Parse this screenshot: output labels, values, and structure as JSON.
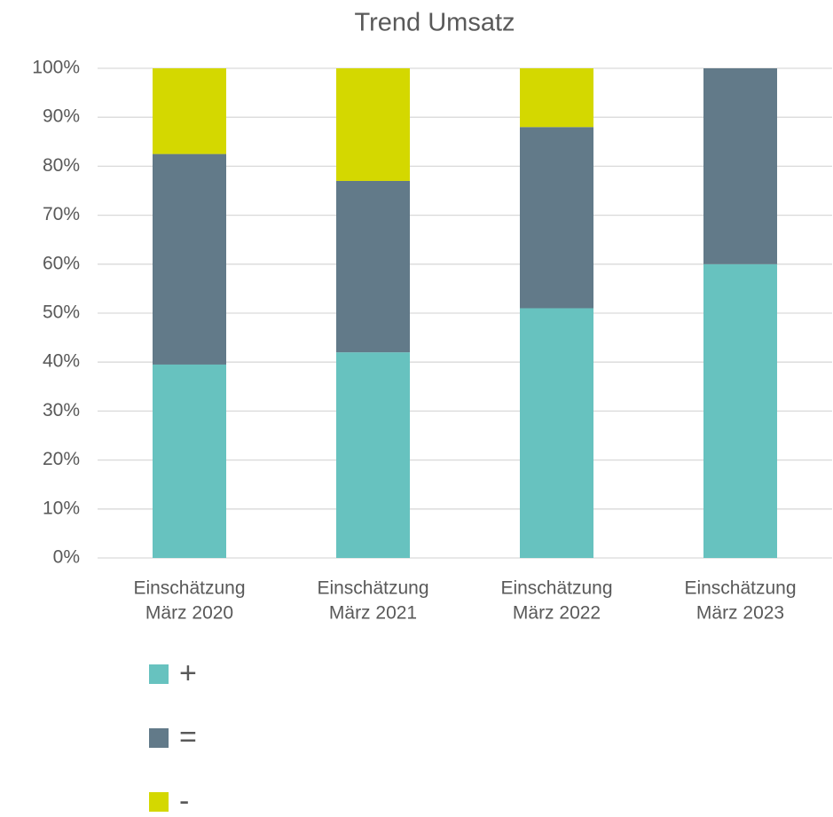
{
  "chart_data": {
    "type": "stacked_bar",
    "title": "Trend Umsatz",
    "categories": [
      [
        "Einschätzung",
        "März 2020"
      ],
      [
        "Einschätzung",
        "März 2021"
      ],
      [
        "Einschätzung",
        "März 2022"
      ],
      [
        "Einschätzung",
        "März 2023"
      ]
    ],
    "series": [
      {
        "name": "+",
        "color": "#67c2bf",
        "values": [
          39.5,
          42,
          51,
          60
        ]
      },
      {
        "name": "=",
        "color": "#627a89",
        "values": [
          43,
          35,
          37,
          40
        ]
      },
      {
        "name": "-",
        "color": "#d4d800",
        "values": [
          17.5,
          23,
          12,
          0
        ]
      }
    ],
    "ylim": [
      0,
      100
    ],
    "yticks": [
      {
        "value": 0,
        "label": "0%"
      },
      {
        "value": 10,
        "label": "10%"
      },
      {
        "value": 20,
        "label": "20%"
      },
      {
        "value": 30,
        "label": "30%"
      },
      {
        "value": 40,
        "label": "40%"
      },
      {
        "value": 50,
        "label": "50%"
      },
      {
        "value": 60,
        "label": "60%"
      },
      {
        "value": 70,
        "label": "70%"
      },
      {
        "value": 80,
        "label": "80%"
      },
      {
        "value": 90,
        "label": "90%"
      },
      {
        "value": 100,
        "label": "100%"
      }
    ],
    "grid": true,
    "legend": "bottom-left"
  }
}
